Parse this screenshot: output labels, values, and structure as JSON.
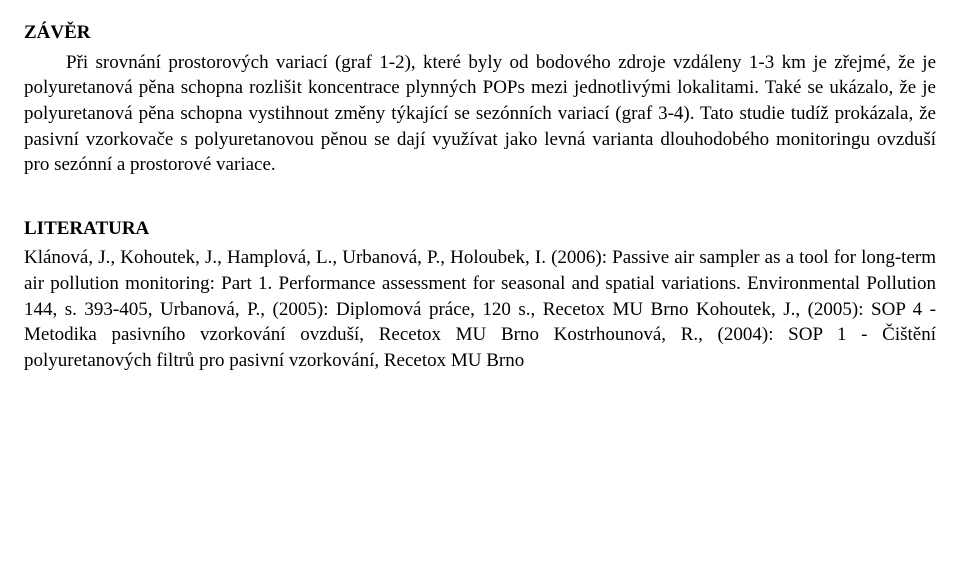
{
  "section1": {
    "heading": "ZÁVĚR",
    "body": "Při srovnání prostorových variací (graf 1-2), které byly od bodového zdroje vzdáleny 1-3 km je zřejmé, že je polyuretanová pěna schopna rozlišit koncentrace plynných POPs mezi jednotlivými lokalitami. Také se ukázalo, že je polyuretanová pěna schopna vystihnout změny týkající se sezónních variací (graf 3-4).  Tato studie tudíž prokázala, že pasivní vzorkovače s polyuretanovou pěnou se dají využívat jako levná varianta dlouhodobého monitoringu ovzduší pro sezónní a prostorové variace."
  },
  "section2": {
    "heading": "LITERATURA",
    "ref1": "Klánová, J., Kohoutek, J., Hamplová, L., Urbanová, P., Holoubek, I. (2006): Passive air sampler as a tool for long-term air pollution monitoring: Part 1. Performance assessment for seasonal and spatial variations. Environmental Pollution 144, s. 393-405, Urbanová, P., (2005): Diplomová práce, 120 s., Recetox MU Brno Kohoutek, J., (2005):  SOP 4 - Metodika pasivního vzorkování ovzduší, Recetox MU Brno Kostrhounová, R., (2004): SOP 1 - Čištění polyuretanových filtrů pro pasivní vzorkování, Recetox MU Brno"
  }
}
